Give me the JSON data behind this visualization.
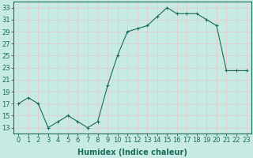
{
  "x": [
    0,
    1,
    2,
    3,
    4,
    5,
    6,
    7,
    8,
    9,
    10,
    11,
    12,
    13,
    14,
    15,
    16,
    17,
    18,
    19,
    20,
    21,
    22,
    23
  ],
  "y": [
    17,
    18,
    17,
    13,
    14,
    15,
    14,
    13,
    14,
    20,
    25,
    29,
    29.5,
    30,
    31.5,
    33,
    32,
    32,
    32,
    31,
    30,
    22.5,
    22.5,
    22.5
  ],
  "line_color": "#1a6b5a",
  "marker": "+",
  "marker_color": "#1a6b5a",
  "bg_color": "#c8eae4",
  "grid_color": "#e8c8c8",
  "ylabel_ticks": [
    13,
    15,
    17,
    19,
    21,
    23,
    25,
    27,
    29,
    31,
    33
  ],
  "xlabel": "Humidex (Indice chaleur)",
  "xlabel_fontsize": 7,
  "tick_fontsize": 6,
  "ylim": [
    12,
    34
  ],
  "xlim": [
    -0.5,
    23.5
  ]
}
